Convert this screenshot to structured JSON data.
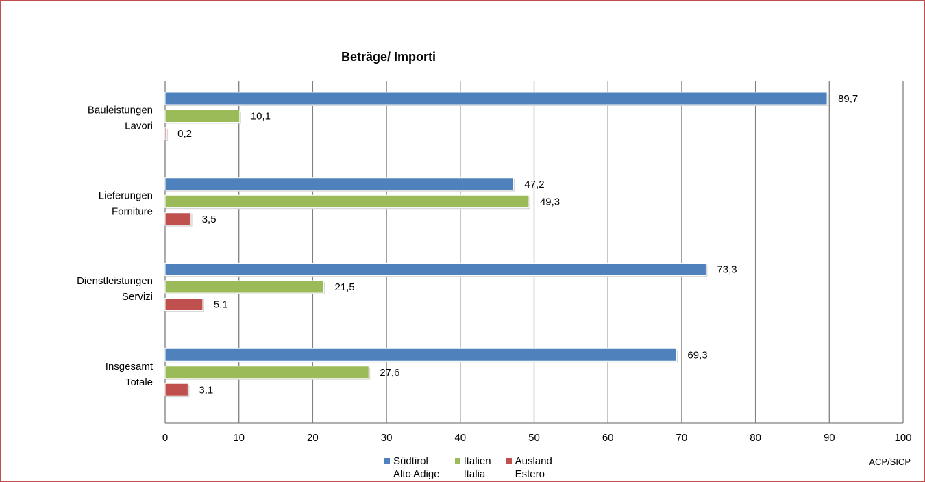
{
  "chart_data": {
    "type": "bar",
    "orientation": "horizontal",
    "title": "Beträge/ Importi",
    "categories": [
      [
        "Bauleistungen",
        "Lavori"
      ],
      [
        "Lieferungen",
        "Forniture"
      ],
      [
        "Dienstleistungen",
        "Servizi"
      ],
      [
        "Insgesamt",
        "Totale"
      ]
    ],
    "series": [
      {
        "name": [
          "Südtirol",
          "Alto Adige"
        ],
        "color": "#4f81bd",
        "values": [
          89.7,
          47.2,
          73.3,
          69.3
        ],
        "labels": [
          "89,7",
          "47,2",
          "73,3",
          "69,3"
        ]
      },
      {
        "name": [
          "Italien",
          "Italia"
        ],
        "color": "#9bbb59",
        "values": [
          10.1,
          49.3,
          21.5,
          27.6
        ],
        "labels": [
          "10,1",
          "49,3",
          "21,5",
          "27,6"
        ]
      },
      {
        "name": [
          "Ausland",
          "Estero"
        ],
        "color": "#c0504d",
        "values": [
          0.2,
          3.5,
          5.1,
          3.1
        ],
        "labels": [
          "0,2",
          "3,5",
          "5,1",
          "3,1"
        ]
      }
    ],
    "xlim": [
      0,
      100
    ],
    "xticks": [
      0,
      10,
      20,
      30,
      40,
      50,
      60,
      70,
      80,
      90,
      100
    ],
    "grid": "vertical",
    "legend": "bottom"
  },
  "credit": "ACP/SICP"
}
